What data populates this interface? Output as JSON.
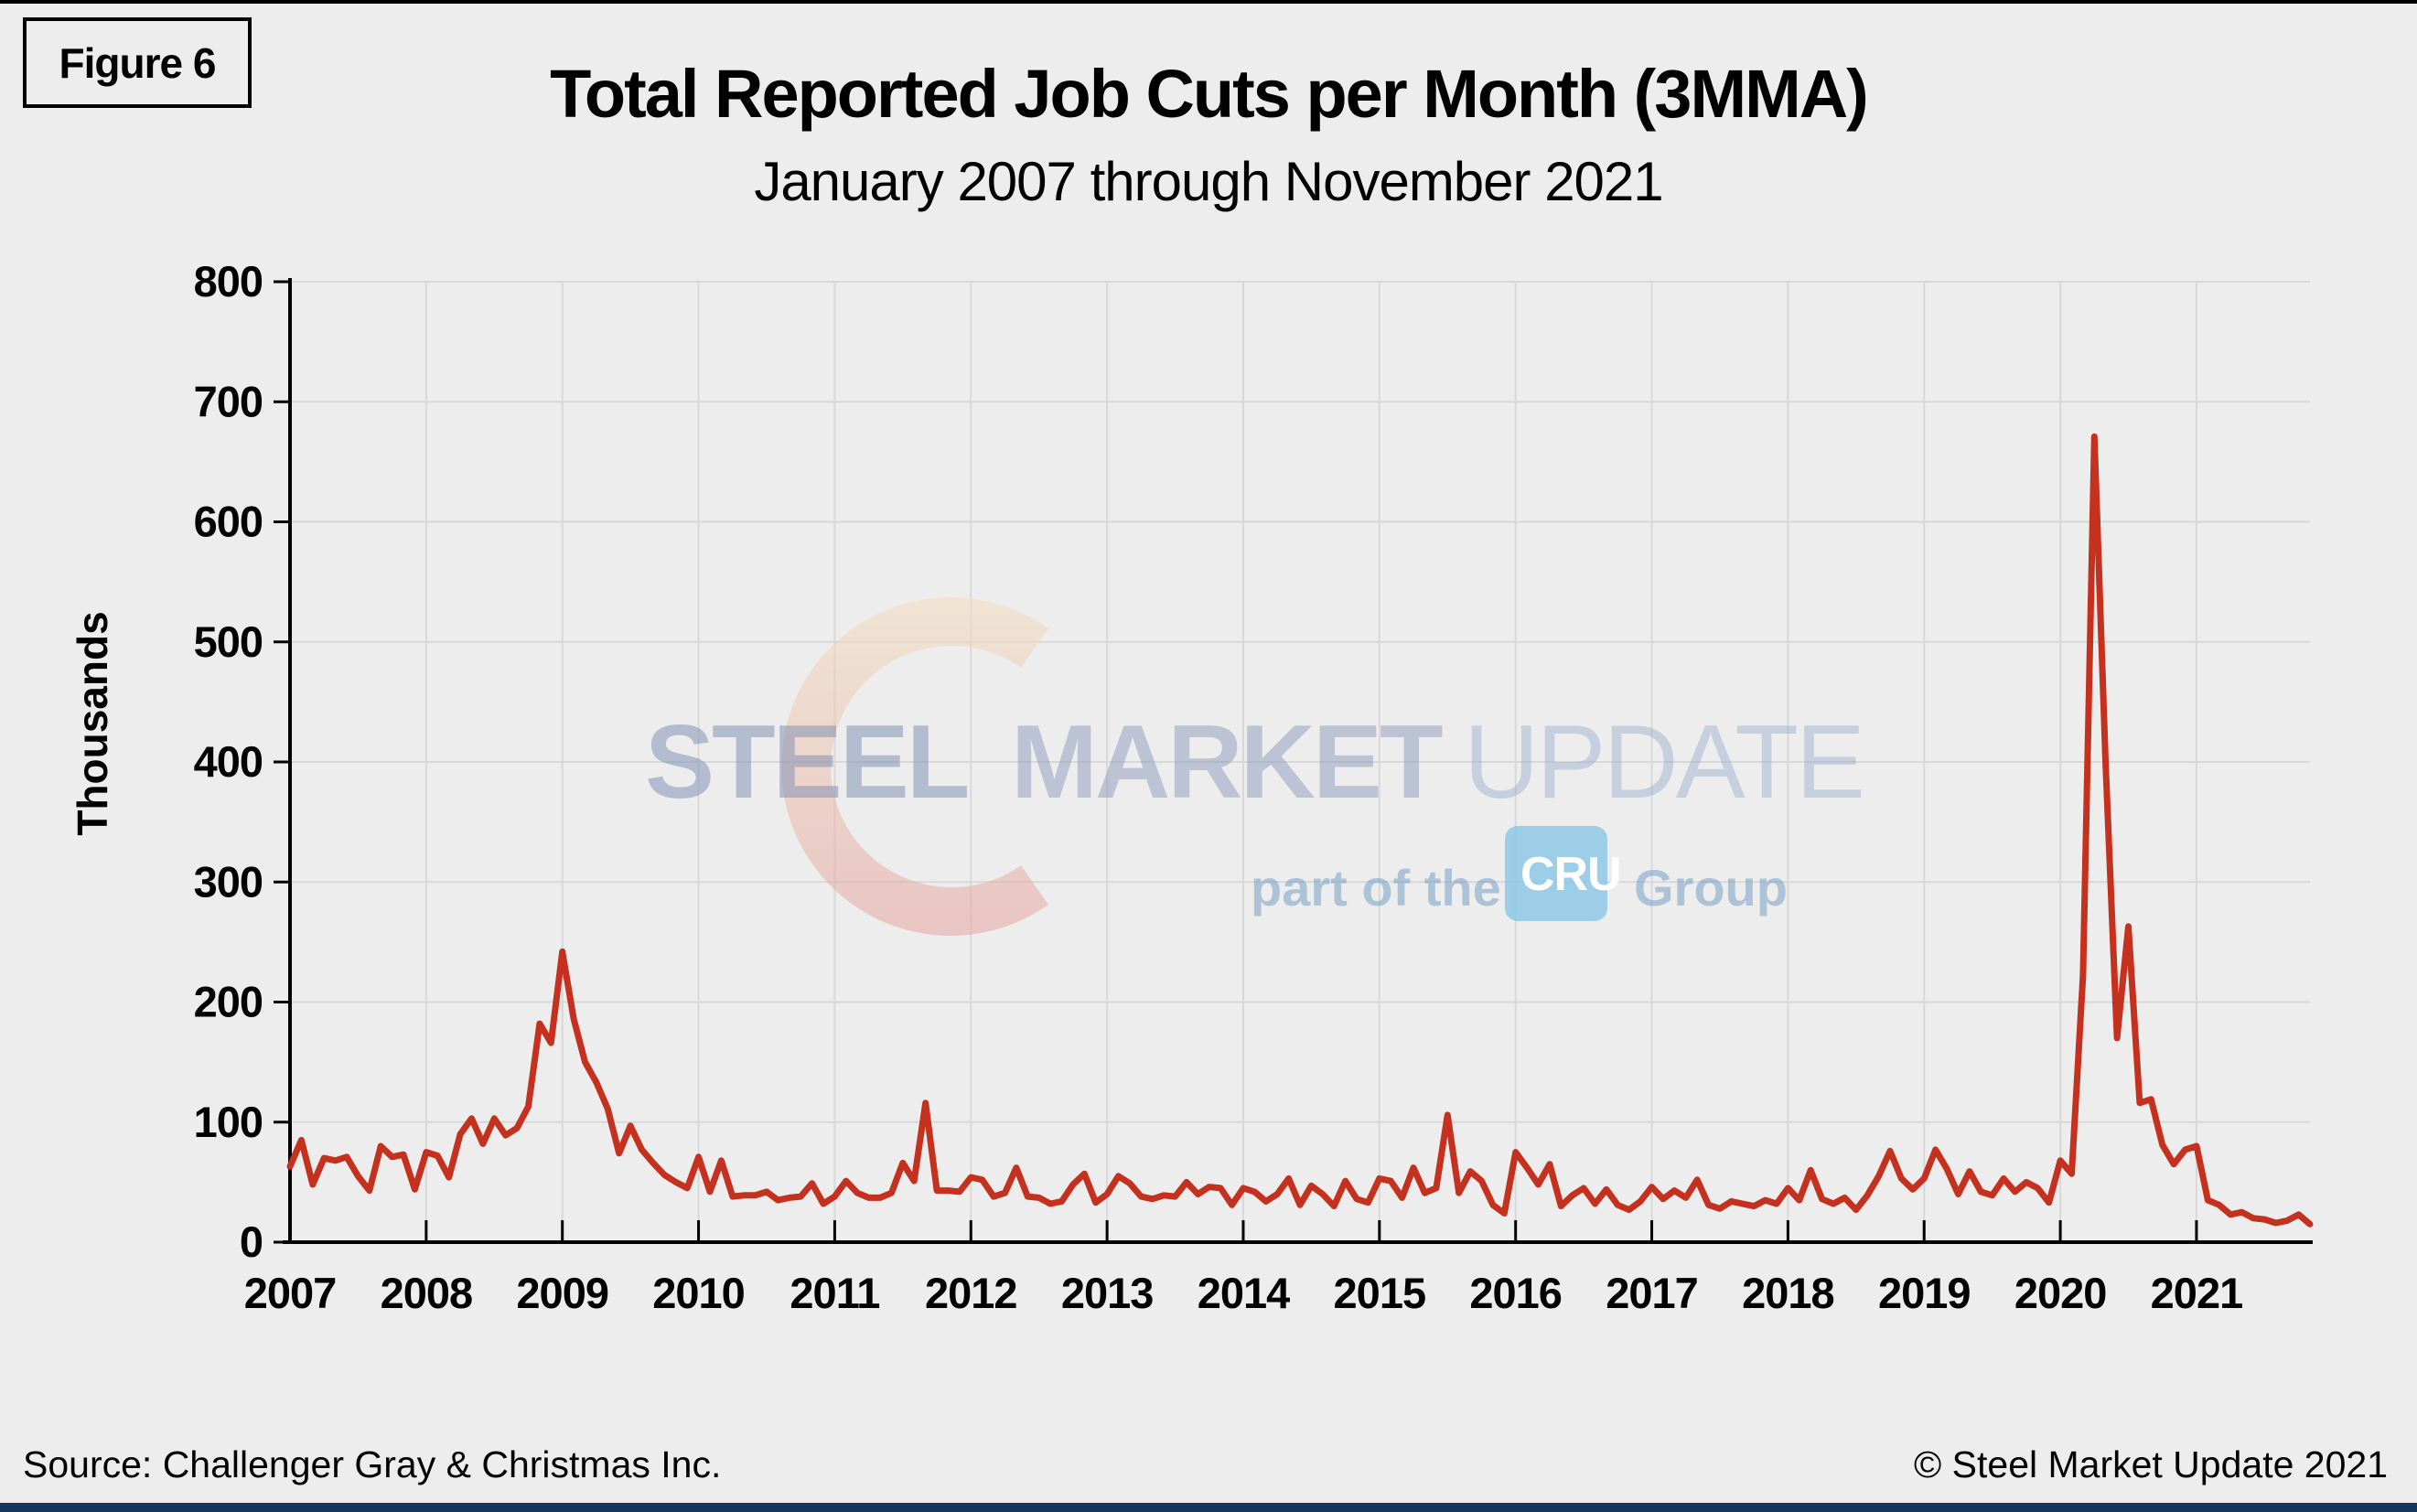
{
  "figure_label": "Figure 6",
  "title": "Total Reported Job Cuts per Month (3MMA)",
  "subtitle": "January 2007 through November 2021",
  "source": "Source: Challenger Gray & Christmas Inc.",
  "copyright": "© Steel Market Update 2021",
  "watermark": {
    "word1": "STEEL",
    "word2": "MARKET",
    "word3": "UPDATE",
    "tagline_prefix": "part of the",
    "cru": "CRU",
    "tagline_suffix": "Group"
  },
  "colors": {
    "background": "#EDEDED",
    "gridline": "#D8D8D8",
    "axis": "#000000",
    "series_line": "#C5311F",
    "bottom_bar": "#16365C",
    "watermark_blue": "#8395B8",
    "watermark_crescent_top": "#F2DDBE",
    "watermark_crescent_bottom": "#E5A4A2"
  },
  "chart_data": {
    "type": "line",
    "title": "Total Reported Job Cuts per Month (3MMA)",
    "subtitle": "January 2007 through November 2021",
    "xlabel": "",
    "ylabel": "Thousands",
    "ylim": [
      0,
      800
    ],
    "y_ticks": [
      0,
      100,
      200,
      300,
      400,
      500,
      600,
      700,
      800
    ],
    "x_tick_labels": [
      "2007",
      "2008",
      "2009",
      "2010",
      "2011",
      "2012",
      "2013",
      "2014",
      "2015",
      "2016",
      "2017",
      "2018",
      "2019",
      "2020",
      "2021"
    ],
    "x_start": "2007-01",
    "x_end": "2021-11",
    "grid": true,
    "legend": "none",
    "series": [
      {
        "name": "Total reported job cuts (thousands)",
        "values": [
          63,
          85,
          48,
          70,
          68,
          71,
          55,
          43,
          80,
          71,
          73,
          44,
          75,
          72,
          54,
          90,
          103,
          82,
          103,
          89,
          95,
          113,
          182,
          166,
          242,
          186,
          150,
          133,
          111,
          74,
          97,
          77,
          66,
          56,
          50,
          45,
          71,
          42,
          68,
          38,
          39,
          39,
          42,
          35,
          37,
          38,
          49,
          32,
          38,
          51,
          41,
          37,
          37,
          41,
          66,
          51,
          116,
          43,
          43,
          42,
          54,
          52,
          38,
          41,
          62,
          38,
          37,
          32,
          34,
          48,
          57,
          33,
          40,
          55,
          49,
          38,
          36,
          39,
          38,
          50,
          40,
          46,
          45,
          31,
          45,
          42,
          34,
          40,
          53,
          31,
          47,
          40,
          30,
          51,
          36,
          33,
          53,
          51,
          37,
          62,
          41,
          45,
          106,
          41,
          59,
          51,
          31,
          24,
          75,
          62,
          48,
          65,
          30,
          39,
          45,
          32,
          44,
          31,
          27,
          34,
          46,
          36,
          43,
          37,
          52,
          31,
          28,
          34,
          32,
          30,
          35,
          32,
          45,
          35,
          60,
          36,
          32,
          37,
          27,
          39,
          55,
          76,
          53,
          44,
          53,
          77,
          61,
          40,
          59,
          42,
          39,
          53,
          42,
          50,
          45,
          33,
          68,
          57,
          222,
          671,
          397,
          170,
          263,
          116,
          119,
          81,
          65,
          77,
          80,
          35,
          31,
          23,
          25,
          20,
          19,
          16,
          18,
          23,
          15
        ]
      }
    ]
  }
}
